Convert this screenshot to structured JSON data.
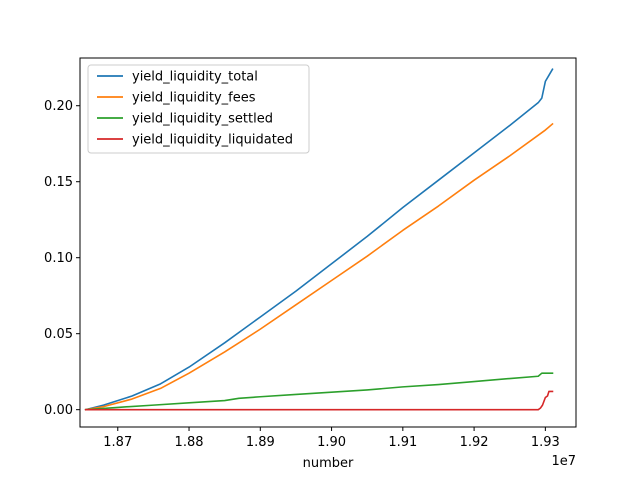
{
  "chart_data": {
    "type": "line",
    "xlabel": "number",
    "x_offset_label": "1e7",
    "xlim": [
      1.8647,
      1.9343
    ],
    "ylim": [
      -0.0114,
      0.2314
    ],
    "x_ticks": [
      {
        "value": 1.87,
        "label": "1.87"
      },
      {
        "value": 1.88,
        "label": "1.88"
      },
      {
        "value": 1.89,
        "label": "1.89"
      },
      {
        "value": 1.9,
        "label": "1.90"
      },
      {
        "value": 1.91,
        "label": "1.91"
      },
      {
        "value": 1.92,
        "label": "1.92"
      },
      {
        "value": 1.93,
        "label": "1.93"
      }
    ],
    "y_ticks": [
      {
        "value": 0.0,
        "label": "0.00"
      },
      {
        "value": 0.05,
        "label": "0.05"
      },
      {
        "value": 0.1,
        "label": "0.10"
      },
      {
        "value": 0.15,
        "label": "0.15"
      },
      {
        "value": 0.2,
        "label": "0.20"
      }
    ],
    "grid": false,
    "legend_position": "upper-left",
    "series": [
      {
        "name": "yield_liquidity_total",
        "color": "#1f77b4",
        "points": [
          [
            1.8655,
            0
          ],
          [
            1.868,
            0.003
          ],
          [
            1.872,
            0.009
          ],
          [
            1.876,
            0.017
          ],
          [
            1.88,
            0.028
          ],
          [
            1.885,
            0.044
          ],
          [
            1.89,
            0.061
          ],
          [
            1.895,
            0.078
          ],
          [
            1.9,
            0.096
          ],
          [
            1.905,
            0.114
          ],
          [
            1.91,
            0.133
          ],
          [
            1.915,
            0.151
          ],
          [
            1.92,
            0.169
          ],
          [
            1.925,
            0.187
          ],
          [
            1.929,
            0.202
          ],
          [
            1.9295,
            0.205
          ],
          [
            1.93,
            0.216
          ],
          [
            1.9305,
            0.22
          ],
          [
            1.931,
            0.224
          ]
        ]
      },
      {
        "name": "yield_liquidity_fees",
        "color": "#ff7f0e",
        "points": [
          [
            1.8655,
            0
          ],
          [
            1.868,
            0.002
          ],
          [
            1.872,
            0.007
          ],
          [
            1.876,
            0.014
          ],
          [
            1.88,
            0.024
          ],
          [
            1.885,
            0.038
          ],
          [
            1.89,
            0.053
          ],
          [
            1.895,
            0.069
          ],
          [
            1.9,
            0.085
          ],
          [
            1.905,
            0.101
          ],
          [
            1.91,
            0.118
          ],
          [
            1.915,
            0.134
          ],
          [
            1.92,
            0.151
          ],
          [
            1.925,
            0.167
          ],
          [
            1.93,
            0.184
          ],
          [
            1.931,
            0.188
          ]
        ]
      },
      {
        "name": "yield_liquidity_settled",
        "color": "#2ca02c",
        "points": [
          [
            1.8655,
            0
          ],
          [
            1.87,
            0.0015
          ],
          [
            1.875,
            0.003
          ],
          [
            1.88,
            0.0045
          ],
          [
            1.885,
            0.006
          ],
          [
            1.887,
            0.0075
          ],
          [
            1.89,
            0.0085
          ],
          [
            1.895,
            0.01
          ],
          [
            1.9,
            0.0115
          ],
          [
            1.905,
            0.013
          ],
          [
            1.91,
            0.015
          ],
          [
            1.915,
            0.0165
          ],
          [
            1.92,
            0.0185
          ],
          [
            1.925,
            0.0205
          ],
          [
            1.929,
            0.022
          ],
          [
            1.9295,
            0.024
          ],
          [
            1.931,
            0.024
          ]
        ]
      },
      {
        "name": "yield_liquidity_liquidated",
        "color": "#d62728",
        "points": [
          [
            1.8655,
            0
          ],
          [
            1.9,
            0
          ],
          [
            1.929,
            0
          ],
          [
            1.9293,
            0.001
          ],
          [
            1.9296,
            0.003
          ],
          [
            1.93,
            0.008
          ],
          [
            1.9303,
            0.009
          ],
          [
            1.9305,
            0.012
          ],
          [
            1.931,
            0.012
          ]
        ]
      }
    ]
  }
}
